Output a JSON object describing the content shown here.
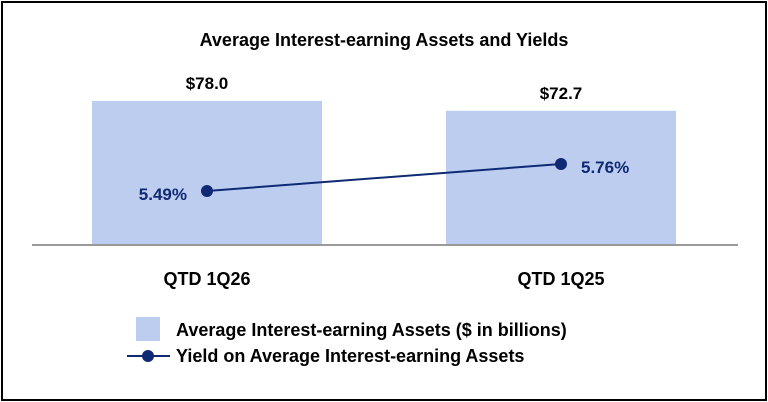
{
  "chart_data": {
    "type": "bar",
    "title": "Average Interest-earning Assets and Yields",
    "categories": [
      "QTD 1Q26",
      "QTD 1Q25"
    ],
    "series": [
      {
        "name": "Average Interest-earning Assets ($ in billions)",
        "type": "bar",
        "values": [
          78.0,
          72.7
        ],
        "labels": [
          "$78.0",
          "$72.7"
        ],
        "color": "#bccdf0"
      },
      {
        "name": "Yield on Average Interest-earning Assets",
        "type": "line",
        "values": [
          5.49,
          5.76
        ],
        "labels": [
          "5.49%",
          "5.76%"
        ],
        "color": "#0f2a73"
      }
    ],
    "legend_position": "bottom",
    "grid": false
  }
}
